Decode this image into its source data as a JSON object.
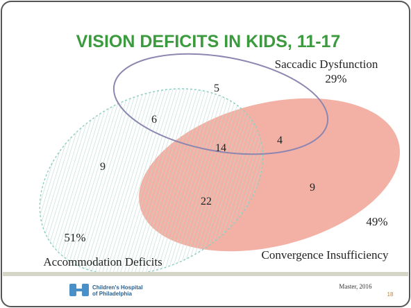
{
  "title": "VISION DEFICITS IN KIDS, 11-17",
  "sets": [
    {
      "name": "Saccadic Dysfunction",
      "percent": "29%"
    },
    {
      "name": "Accommodation Deficits",
      "percent": "51%"
    },
    {
      "name": "Convergence Insufficiency",
      "percent": "49%"
    }
  ],
  "regions": [
    {
      "sets": "Saccadic only",
      "count": "5"
    },
    {
      "sets": "Saccadic and Accommodation",
      "count": "6"
    },
    {
      "sets": "All three",
      "count": "14"
    },
    {
      "sets": "Saccadic and Convergence",
      "count": "4"
    },
    {
      "sets": "Accommodation only",
      "count": "9"
    },
    {
      "sets": "Accommodation and Convergence",
      "count": "22"
    },
    {
      "sets": "Convergence only",
      "count": "9"
    }
  ],
  "footer": {
    "logo_line1": "Children's Hospital",
    "logo_line2": "of Philadelphia",
    "citation": "Master, 2016",
    "page": "18"
  }
}
